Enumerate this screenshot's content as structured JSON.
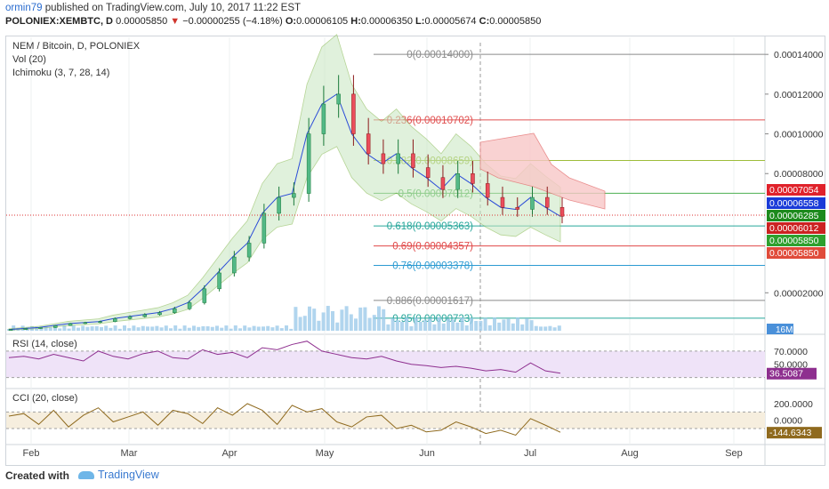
{
  "header": {
    "user": "ormin79",
    "published_text": "published on TradingView.com, July 10, 2017 11:22 EST",
    "symbol_line_prefix": "POLONIEX:XEMBTC, D",
    "last_price": "0.00005850",
    "change": "−0.00000255 (−4.18%)",
    "o_label": "O:",
    "o_value": "0.00006105",
    "h_label": "H:",
    "h_value": "0.00006350",
    "l_label": "L:",
    "l_value": "0.00005674",
    "c_label": "C:",
    "c_value": "0.00005850"
  },
  "legend": {
    "main_title": "NEM / Bitcoin, D, POLONIEX",
    "vol": "Vol (20)",
    "ichimoku": "Ichimoku (3, 7, 28, 14)",
    "rsi": "RSI (14, close)",
    "cci": "CCI (20, close)"
  },
  "footer": {
    "created_with": "Created with",
    "brand": "TradingView"
  },
  "colors": {
    "up": "#53b987",
    "down": "#eb4d5c",
    "ichimoku_cloud_green": "#c8e6c0",
    "ichimoku_cloud_red": "#f8c8c8",
    "volume": "#9ecbea",
    "rsi_line": "#8e2f8f",
    "rsi_band": "#efe3f8",
    "cci_line": "#8f6a1e",
    "cci_band": "#f6eede"
  },
  "chart_data": [
    {
      "type": "line",
      "title": "NEM / Bitcoin, D, POLONIEX",
      "x_ticks": [
        "Feb",
        "Mar",
        "Apr",
        "May",
        "Jun",
        "Jul",
        "Aug",
        "Sep"
      ],
      "y_ticks": [
        "0.00014000",
        "0.00012000",
        "0.00010000",
        "0.00008000",
        "0.00002000"
      ],
      "ylim": [
        0.0,
        0.000145
      ],
      "price_badges": [
        {
          "text": "0.00007054",
          "color": "#e0222b"
        },
        {
          "text": "0.00006558",
          "color": "#1a3bd8"
        },
        {
          "text": "0.00006285",
          "color": "#1c8a1c"
        },
        {
          "text": "0.00006012",
          "color": "#cc2222"
        },
        {
          "text": "0.00005850",
          "color": "#2ea02e"
        },
        {
          "text": "0.00005850",
          "color": "#e04b3a"
        }
      ],
      "volume_badge": "16M",
      "fib_levels": [
        {
          "label": "0(0.00014000)",
          "value": 0.00014,
          "color": "#8a8a8a"
        },
        {
          "label": "0.236(0.00010702)",
          "value": 0.00010702,
          "color": "#e05050"
        },
        {
          "label": "0.382(0.00008659)",
          "value": 8.66e-05,
          "color": "#9ebd3a"
        },
        {
          "label": "0.5(0.00007012)",
          "value": 7.012e-05,
          "color": "#4caf50"
        },
        {
          "label": "0.618(0.00005363)",
          "value": 5.363e-05,
          "color": "#26a69a"
        },
        {
          "label": "0.69(0.00004357)",
          "value": 4.357e-05,
          "color": "#e04848"
        },
        {
          "label": "0.76(0.00003378)",
          "value": 3.378e-05,
          "color": "#2c9bd2"
        },
        {
          "label": "0.886(0.00001617)",
          "value": 1.617e-05,
          "color": "#8a8a8a"
        },
        {
          "label": "0.95(0.00000723)",
          "value": 7.23e-06,
          "color": "#26a69a"
        }
      ],
      "close_series": {
        "name": "Close",
        "dates": [
          "Jan 25",
          "Feb 1",
          "Feb 8",
          "Feb 15",
          "Feb 22",
          "Mar 1",
          "Mar 8",
          "Mar 15",
          "Mar 22",
          "Mar 29",
          "Apr 5",
          "Apr 12",
          "Apr 19",
          "Apr 26",
          "May 1",
          "May 4",
          "May 7",
          "May 10",
          "May 13",
          "May 16",
          "May 18",
          "May 20",
          "May 22",
          "May 24",
          "May 27",
          "May 30",
          "Jun 2",
          "Jun 5",
          "Jun 9",
          "Jun 12",
          "Jun 16",
          "Jun 20",
          "Jun 24",
          "Jun 28",
          "Jul 2",
          "Jul 5",
          "Jul 8",
          "Jul 10"
        ],
        "values": [
          1.5e-06,
          2e-06,
          2.5e-06,
          3.5e-06,
          4.5e-06,
          5e-06,
          5.5e-06,
          7e-06,
          8e-06,
          9e-06,
          1e-05,
          1.2e-05,
          1.5e-05,
          2.2e-05,
          3e-05,
          3.8e-05,
          4.5e-05,
          6e-05,
          6.8e-05,
          7e-05,
          0.0001,
          0.000115,
          0.00012,
          0.0001,
          9e-05,
          8.5e-05,
          9e-05,
          8.3e-05,
          7.8e-05,
          7.2e-05,
          8e-05,
          7.5e-05,
          6.8e-05,
          6.3e-05,
          6.2e-05,
          6.8e-05,
          6.3e-05,
          5.85e-05
        ]
      }
    },
    {
      "type": "line",
      "title": "RSI (14, close)",
      "y_ticks": [
        "70.0000",
        "50.0000"
      ],
      "last_value": "36.5087",
      "ylim": [
        20,
        90
      ],
      "series": [
        {
          "name": "RSI",
          "values": [
            60,
            62,
            58,
            65,
            60,
            55,
            70,
            62,
            58,
            66,
            70,
            60,
            58,
            72,
            65,
            68,
            60,
            75,
            72,
            80,
            85,
            70,
            65,
            60,
            58,
            62,
            55,
            50,
            48,
            45,
            47,
            44,
            40,
            42,
            38,
            52,
            40,
            36.5
          ]
        }
      ]
    },
    {
      "type": "line",
      "title": "CCI (20, close)",
      "y_ticks": [
        "200.0000",
        "0.0000"
      ],
      "last_value": "-144.6343",
      "ylim": [
        -250,
        350
      ],
      "series": [
        {
          "name": "CCI",
          "values": [
            50,
            80,
            -50,
            120,
            -80,
            60,
            150,
            -20,
            40,
            100,
            -60,
            120,
            80,
            -40,
            150,
            60,
            200,
            120,
            -50,
            180,
            100,
            140,
            -20,
            -80,
            40,
            60,
            -100,
            -60,
            -140,
            -120,
            -20,
            -80,
            -160,
            -120,
            -180,
            20,
            -60,
            -144.6
          ]
        }
      ]
    }
  ]
}
